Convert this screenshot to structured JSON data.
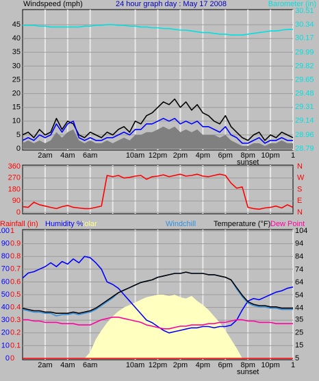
{
  "chart_data": [
    {
      "type": "line",
      "title": "24 hour graph day : May 17 2008",
      "ylabel": "Windspeed (mph)",
      "y2label": "Barometer (in)",
      "ycolor": "#000000",
      "y2color": "#00e0e0",
      "x": [
        0,
        0.5,
        1,
        1.5,
        2,
        2.5,
        3,
        3.5,
        4,
        4.5,
        5,
        5.5,
        6,
        6.5,
        7,
        7.5,
        8,
        8.5,
        9,
        9.5,
        10,
        10.5,
        11,
        11.5,
        12,
        12.5,
        13,
        13.5,
        14,
        14.5,
        15,
        15.5,
        16,
        16.5,
        17,
        17.5,
        18,
        18.5,
        19,
        19.5,
        20,
        20.5,
        21,
        21.5,
        22,
        22.5,
        23,
        23.5,
        24
      ],
      "xlim": [
        0,
        24
      ],
      "xticks": [
        {
          "value": 2,
          "label": "2am"
        },
        {
          "value": 4,
          "label": "4am"
        },
        {
          "value": 6,
          "label": "6am"
        },
        {
          "value": 10,
          "label": "10am"
        },
        {
          "value": 12,
          "label": "12pm"
        },
        {
          "value": 14,
          "label": "2pm"
        },
        {
          "value": 16,
          "label": "4pm"
        },
        {
          "value": 18,
          "label": "6pm"
        },
        {
          "value": 20,
          "label": "8pm"
        },
        {
          "value": 22,
          "label": "10pm"
        },
        {
          "value": 24,
          "label": "1"
        }
      ],
      "annotations": [
        {
          "text": "sunset",
          "x": 20
        }
      ],
      "ylim": [
        0,
        50
      ],
      "yticks": [
        0,
        5,
        10,
        15,
        20,
        25,
        30,
        35,
        40,
        45
      ],
      "y2lim": [
        28.79,
        30.51
      ],
      "y2ticks": [
        28.79,
        28.96,
        29.14,
        29.31,
        29.48,
        29.65,
        29.82,
        29.99,
        30.17,
        30.34,
        30.51
      ],
      "series": [
        {
          "color": "#808080",
          "style": "area",
          "values": [
            2,
            3,
            2,
            3,
            2,
            3,
            6,
            4,
            6,
            7,
            3,
            2,
            3,
            2,
            2,
            3,
            2,
            3,
            4,
            3,
            5,
            5,
            6,
            6,
            7,
            8,
            7,
            8,
            6,
            7,
            6,
            7,
            5,
            5,
            5,
            4,
            5,
            3,
            2,
            1,
            1,
            2,
            2,
            1,
            2,
            2,
            3,
            2,
            2
          ]
        },
        {
          "color": "#000000",
          "values": [
            5,
            6,
            4,
            7,
            5,
            6,
            11,
            7,
            10,
            9,
            5,
            4,
            6,
            5,
            4,
            6,
            5,
            7,
            8,
            6,
            10,
            9,
            12,
            13,
            15,
            17,
            16,
            18,
            15,
            17,
            14,
            16,
            13,
            12,
            10,
            9,
            12,
            8,
            6,
            4,
            3,
            5,
            6,
            3,
            5,
            4,
            6,
            5,
            4
          ]
        },
        {
          "color": "#0000ff",
          "values": [
            3,
            4,
            3,
            5,
            4,
            5,
            9,
            6,
            9,
            10,
            4,
            3,
            4,
            3,
            3,
            4,
            4,
            5,
            6,
            5,
            7,
            7,
            9,
            9,
            10,
            11,
            10,
            11,
            9,
            10,
            9,
            10,
            8,
            8,
            7,
            6,
            8,
            5,
            4,
            2,
            2,
            3,
            4,
            2,
            3,
            3,
            4,
            3,
            3
          ]
        },
        {
          "color": "#00e0e0",
          "axis": "y2",
          "values": [
            30.33,
            30.33,
            30.33,
            30.32,
            30.32,
            30.31,
            30.31,
            30.31,
            30.31,
            30.31,
            30.31,
            30.32,
            30.32,
            30.33,
            30.33,
            30.34,
            30.34,
            30.33,
            30.33,
            30.32,
            30.32,
            30.31,
            30.31,
            30.3,
            30.3,
            30.29,
            30.29,
            30.28,
            30.27,
            30.27,
            30.26,
            30.25,
            30.24,
            30.24,
            30.23,
            30.22,
            30.22,
            30.21,
            30.21,
            30.21,
            30.22,
            30.23,
            30.24,
            30.25,
            30.26,
            30.26,
            30.27,
            30.28,
            30.28
          ]
        }
      ]
    },
    {
      "type": "line",
      "ycolor": "#ff0000",
      "y2color": "#ff0000",
      "x": [
        0,
        0.5,
        1,
        1.5,
        2,
        2.5,
        3,
        3.5,
        4,
        4.5,
        5,
        5.5,
        6,
        6.5,
        7,
        7.5,
        8,
        8.5,
        9,
        9.5,
        10,
        10.5,
        11,
        11.5,
        12,
        12.5,
        13,
        13.5,
        14,
        14.5,
        15,
        15.5,
        16,
        16.5,
        17,
        17.5,
        18,
        18.5,
        19,
        19.5,
        20,
        20.5,
        21,
        21.5,
        22,
        22.5,
        23,
        23.5,
        24
      ],
      "xlim": [
        0,
        24
      ],
      "xticks": [
        2,
        4,
        6,
        8,
        10,
        12,
        14,
        16,
        18,
        20,
        22
      ],
      "ylim": [
        0,
        360
      ],
      "yticks": [
        0,
        90,
        180,
        270,
        360
      ],
      "y2lim": [
        0,
        360
      ],
      "y2ticks": [
        {
          "value": 0,
          "label": "N"
        },
        {
          "value": 90,
          "label": "E"
        },
        {
          "value": 180,
          "label": "S"
        },
        {
          "value": 270,
          "label": "W"
        },
        {
          "value": 360,
          "label": "N"
        }
      ],
      "series": [
        {
          "color": "#ff0000",
          "values": [
            45,
            40,
            80,
            60,
            50,
            40,
            30,
            45,
            55,
            40,
            35,
            30,
            30,
            40,
            50,
            290,
            280,
            290,
            270,
            275,
            285,
            290,
            260,
            280,
            285,
            295,
            280,
            290,
            300,
            285,
            290,
            300,
            285,
            280,
            290,
            300,
            290,
            230,
            190,
            200,
            40,
            30,
            25,
            35,
            40,
            50,
            35,
            60,
            40
          ]
        }
      ]
    },
    {
      "type": "line",
      "ycolor": "#0000ff",
      "y2color": "#000000",
      "y3color": "#ff0000",
      "x": [
        0,
        0.5,
        1,
        1.5,
        2,
        2.5,
        3,
        3.5,
        4,
        4.5,
        5,
        5.5,
        6,
        6.5,
        7,
        7.5,
        8,
        8.5,
        9,
        9.5,
        10,
        10.5,
        11,
        11.5,
        12,
        12.5,
        13,
        13.5,
        14,
        14.5,
        15,
        15.5,
        16,
        16.5,
        17,
        17.5,
        18,
        18.5,
        19,
        19.5,
        20,
        20.5,
        21,
        21.5,
        22,
        22.5,
        23,
        23.5,
        24
      ],
      "xlim": [
        0,
        24
      ],
      "xticks": [
        {
          "value": 2,
          "label": "2am"
        },
        {
          "value": 4,
          "label": "4am"
        },
        {
          "value": 6,
          "label": "6am"
        },
        {
          "value": 10,
          "label": "10am"
        },
        {
          "value": 12,
          "label": "12pm"
        },
        {
          "value": 14,
          "label": "2pm"
        },
        {
          "value": 16,
          "label": "4pm"
        },
        {
          "value": 18,
          "label": "6pm"
        },
        {
          "value": 20,
          "label": "8pm"
        },
        {
          "value": 22,
          "label": "10pm"
        },
        {
          "value": 24,
          "label": "1"
        }
      ],
      "annotations": [
        {
          "text": "sunset",
          "x": 20
        }
      ],
      "ylim": [
        0,
        100
      ],
      "yticks": [
        0,
        10,
        20,
        30,
        40,
        50,
        60,
        70,
        80,
        90,
        100
      ],
      "y2lim": [
        5,
        104
      ],
      "y2ticks": [
        5,
        15,
        25,
        35,
        44,
        54,
        64,
        74,
        84,
        94,
        104
      ],
      "y3lim": [
        0,
        1
      ],
      "y3ticks": [
        0,
        0.1,
        0.2,
        0.3,
        0.4,
        0.5,
        0.6,
        0.7,
        0.8,
        0.9,
        1
      ],
      "series": [
        {
          "name": "Solar",
          "color": "#ffffc0",
          "style": "area",
          "values": [
            0,
            0,
            0,
            0,
            0,
            0,
            0,
            0,
            0,
            0,
            0,
            0,
            5,
            15,
            22,
            28,
            33,
            37,
            40,
            42,
            44,
            46,
            48,
            49,
            50,
            50,
            49,
            50,
            48,
            47,
            49,
            45,
            42,
            38,
            33,
            28,
            22,
            15,
            8,
            0,
            0,
            0,
            0,
            0,
            0,
            0,
            0,
            0,
            0
          ]
        },
        {
          "name": "Rainfall (in)",
          "color": "#ff0000",
          "axis": "y3",
          "values": [
            0,
            0,
            0,
            0,
            0,
            0,
            0,
            0,
            0,
            0,
            0,
            0,
            0,
            0,
            0,
            0,
            0,
            0,
            0,
            0,
            0,
            0,
            0,
            0,
            0,
            0,
            0,
            0,
            0,
            0,
            0,
            0,
            0,
            0,
            0,
            0,
            0,
            0,
            0,
            0,
            0,
            0,
            0,
            0,
            0,
            0,
            0,
            0,
            0
          ]
        },
        {
          "name": "Humidity %",
          "color": "#0000ff",
          "values": [
            63,
            67,
            68,
            70,
            72,
            75,
            72,
            76,
            74,
            78,
            75,
            80,
            79,
            75,
            70,
            60,
            58,
            55,
            50,
            45,
            40,
            35,
            30,
            28,
            25,
            22,
            20,
            21,
            22,
            23,
            24,
            24,
            25,
            25,
            24,
            25,
            25,
            26,
            30,
            38,
            45,
            47,
            46,
            48,
            50,
            52,
            53,
            55,
            56
          ]
        },
        {
          "name": "Dew Point",
          "color": "#ff00a0",
          "axis": "y2",
          "values": [
            35,
            35,
            34,
            34,
            33,
            33,
            33,
            32,
            32,
            32,
            31,
            31,
            31,
            33,
            35,
            36,
            37,
            37,
            36,
            35,
            34,
            33,
            31,
            30,
            29,
            28,
            28,
            29,
            30,
            30,
            31,
            31,
            31,
            32,
            32,
            33,
            33,
            34,
            35,
            35,
            34,
            34,
            33,
            33,
            33,
            32,
            32,
            32,
            32
          ]
        },
        {
          "name": "Windchill",
          "color": "#3090e0",
          "axis": "y2",
          "values": [
            43,
            42,
            41,
            41,
            40,
            40,
            38,
            39,
            39,
            40,
            39,
            40,
            41,
            43,
            46,
            49,
            52,
            56,
            58,
            60,
            62,
            64,
            65,
            66,
            68,
            69,
            70,
            71,
            71,
            72,
            71,
            71,
            71,
            70,
            70,
            69,
            68,
            66,
            59,
            53,
            48,
            46,
            45,
            45,
            44,
            44,
            43,
            43,
            43
          ]
        },
        {
          "name": "Temperature (°F)",
          "color": "#000000",
          "axis": "y2",
          "values": [
            44,
            43,
            42,
            42,
            41,
            41,
            40,
            40,
            40,
            41,
            40,
            41,
            42,
            44,
            47,
            50,
            53,
            56,
            58,
            60,
            62,
            64,
            65,
            66,
            68,
            69,
            70,
            71,
            71,
            72,
            71,
            71,
            71,
            70,
            70,
            69,
            68,
            66,
            60,
            54,
            49,
            47,
            46,
            46,
            45,
            45,
            44,
            44,
            44
          ]
        }
      ]
    }
  ]
}
